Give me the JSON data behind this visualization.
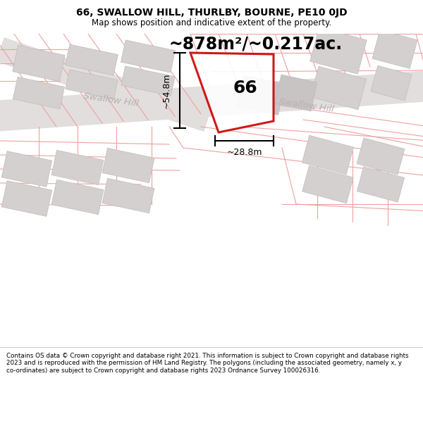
{
  "title": "66, SWALLOW HILL, THURLBY, BOURNE, PE10 0JD",
  "subtitle": "Map shows position and indicative extent of the property.",
  "footer": "Contains OS data © Crown copyright and database right 2021. This information is subject to Crown copyright and database rights 2023 and is reproduced with the permission of HM Land Registry. The polygons (including the associated geometry, namely x, y co-ordinates) are subject to Crown copyright and database rights 2023 Ordnance Survey 100026316.",
  "area_label": "~878m²/~0.217ac.",
  "height_label": "~54.8m",
  "width_label": "~28.8m",
  "plot_number": "66",
  "bg_color": "#faf8f8",
  "road_fill": "#e2dede",
  "building_fill": "#d4d0d0",
  "building_edge": "#c0bcbc",
  "boundary_color": "#f0a0a0",
  "highlight_color": "#cc0000",
  "road_label_color": "#b8b2b2",
  "title_fontsize": 10,
  "subtitle_fontsize": 8.5,
  "area_fontsize": 17,
  "plot_fontsize": 18,
  "footer_fontsize": 6.3
}
